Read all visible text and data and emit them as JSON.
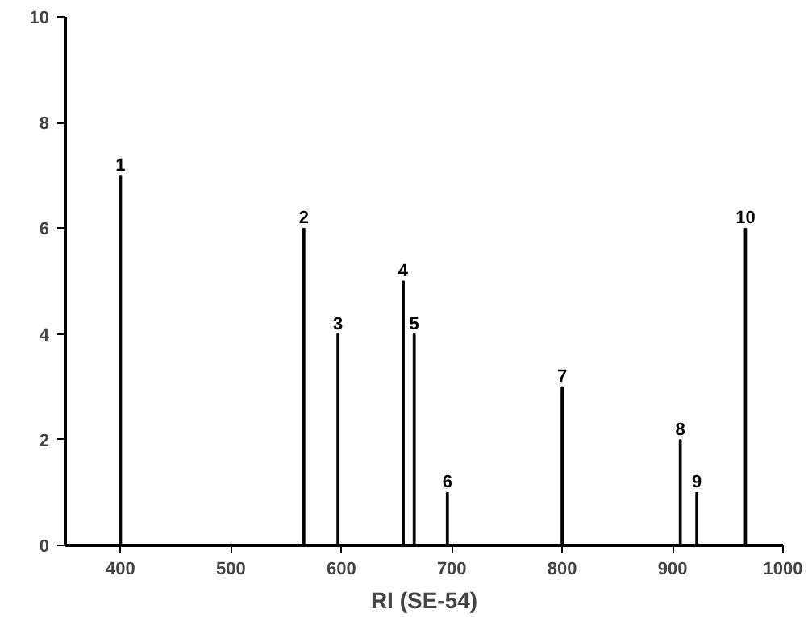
{
  "chart_data": {
    "type": "bar",
    "xlabel": "RI (SE-54)",
    "x": [
      400,
      566,
      597,
      656,
      666,
      696,
      800,
      907,
      922,
      966
    ],
    "values": [
      7,
      6,
      4,
      5,
      4,
      1,
      3,
      2,
      1,
      6
    ],
    "annotations": [
      {
        "text": "1",
        "x": 400,
        "y": 7
      },
      {
        "text": "2",
        "x": 566,
        "y": 6
      },
      {
        "text": "3",
        "x": 597,
        "y": 4
      },
      {
        "text": "4",
        "x": 656,
        "y": 5
      },
      {
        "text": "5",
        "x": 666,
        "y": 4
      },
      {
        "text": "6",
        "x": 696,
        "y": 1
      },
      {
        "text": "7",
        "x": 800,
        "y": 3
      },
      {
        "text": "8",
        "x": 907,
        "y": 2
      },
      {
        "text": "9",
        "x": 922,
        "y": 1
      },
      {
        "text": "10",
        "x": 966,
        "y": 6
      }
    ],
    "color": "#000000",
    "xlim": [
      350,
      1000
    ],
    "xticks": [
      400,
      500,
      600,
      700,
      800,
      900,
      1000
    ],
    "ylim": [
      0,
      10
    ],
    "yticks": [
      0,
      2,
      4,
      6,
      8,
      10
    ],
    "grid": false
  }
}
